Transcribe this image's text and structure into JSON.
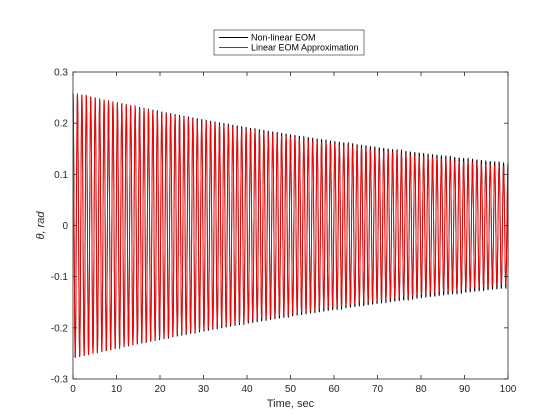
{
  "chart_data": {
    "type": "line",
    "title": "",
    "xlabel": "Time, sec",
    "ylabel": "θ, rad",
    "xlim": [
      0,
      100
    ],
    "ylim": [
      -0.3,
      0.3
    ],
    "xticks": [
      0,
      10,
      20,
      30,
      40,
      50,
      60,
      70,
      80,
      90,
      100
    ],
    "yticks": [
      -0.3,
      -0.2,
      -0.1,
      0,
      0.1,
      0.2,
      0.3
    ],
    "xtick_labels": [
      "0",
      "10",
      "20",
      "30",
      "40",
      "50",
      "60",
      "70",
      "80",
      "90",
      "100"
    ],
    "ytick_labels": [
      "-0.3",
      "-0.2",
      "-0.1",
      "0",
      "0.1",
      "0.2",
      "0.3"
    ],
    "grid": false,
    "legend_position": "top-center",
    "series": [
      {
        "name": "Non-linear EOM",
        "color": "#000000",
        "description_params": {
          "initial_amplitude": 0.26,
          "final_amplitude": 0.122,
          "oscillations": 98,
          "end_value": -0.08
        }
      },
      {
        "name": "Linear EOM Approximation",
        "color": "#ff0000",
        "description_params": {
          "initial_amplitude": 0.26,
          "final_amplitude": 0.115,
          "oscillations": 98,
          "end_value": -0.08
        }
      }
    ]
  }
}
